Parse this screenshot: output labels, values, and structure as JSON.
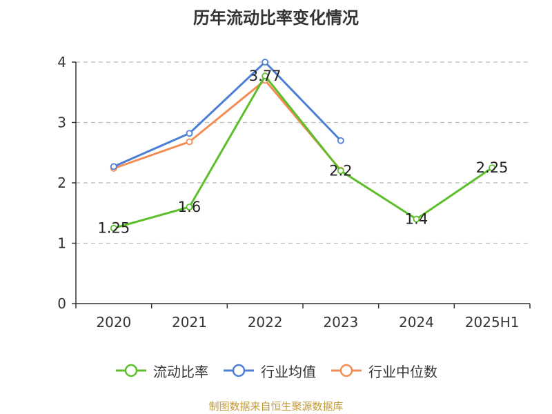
{
  "title": "历年流动比率变化情况",
  "source": "制图数据来自恒生聚源数据库",
  "colors": {
    "axis": "#333333",
    "grid": "#bbbbbb",
    "label": "#222222"
  },
  "chart_data": {
    "type": "line",
    "title": "历年流动比率变化情况",
    "xlabel": "",
    "ylabel": "",
    "categories": [
      "2020",
      "2021",
      "2022",
      "2023",
      "2024",
      "2025H1"
    ],
    "ylim": [
      0,
      4
    ],
    "yticks": [
      0,
      1,
      2,
      3,
      4
    ],
    "grid": true,
    "legend_position": "bottom",
    "series": [
      {
        "name": "流动比率",
        "color": "#5cbf2a",
        "values": [
          1.25,
          1.6,
          3.77,
          2.2,
          1.4,
          2.25
        ],
        "labels": [
          "1.25",
          "1.6",
          "3.77",
          "2.2",
          "1.4",
          "2.25"
        ]
      },
      {
        "name": "行业均值",
        "color": "#4b7fd6",
        "values": [
          2.27,
          2.82,
          4.0,
          2.7,
          null,
          null
        ]
      },
      {
        "name": "行业中位数",
        "color": "#f28c52",
        "values": [
          2.24,
          2.68,
          3.7,
          2.21,
          null,
          null
        ]
      }
    ]
  }
}
